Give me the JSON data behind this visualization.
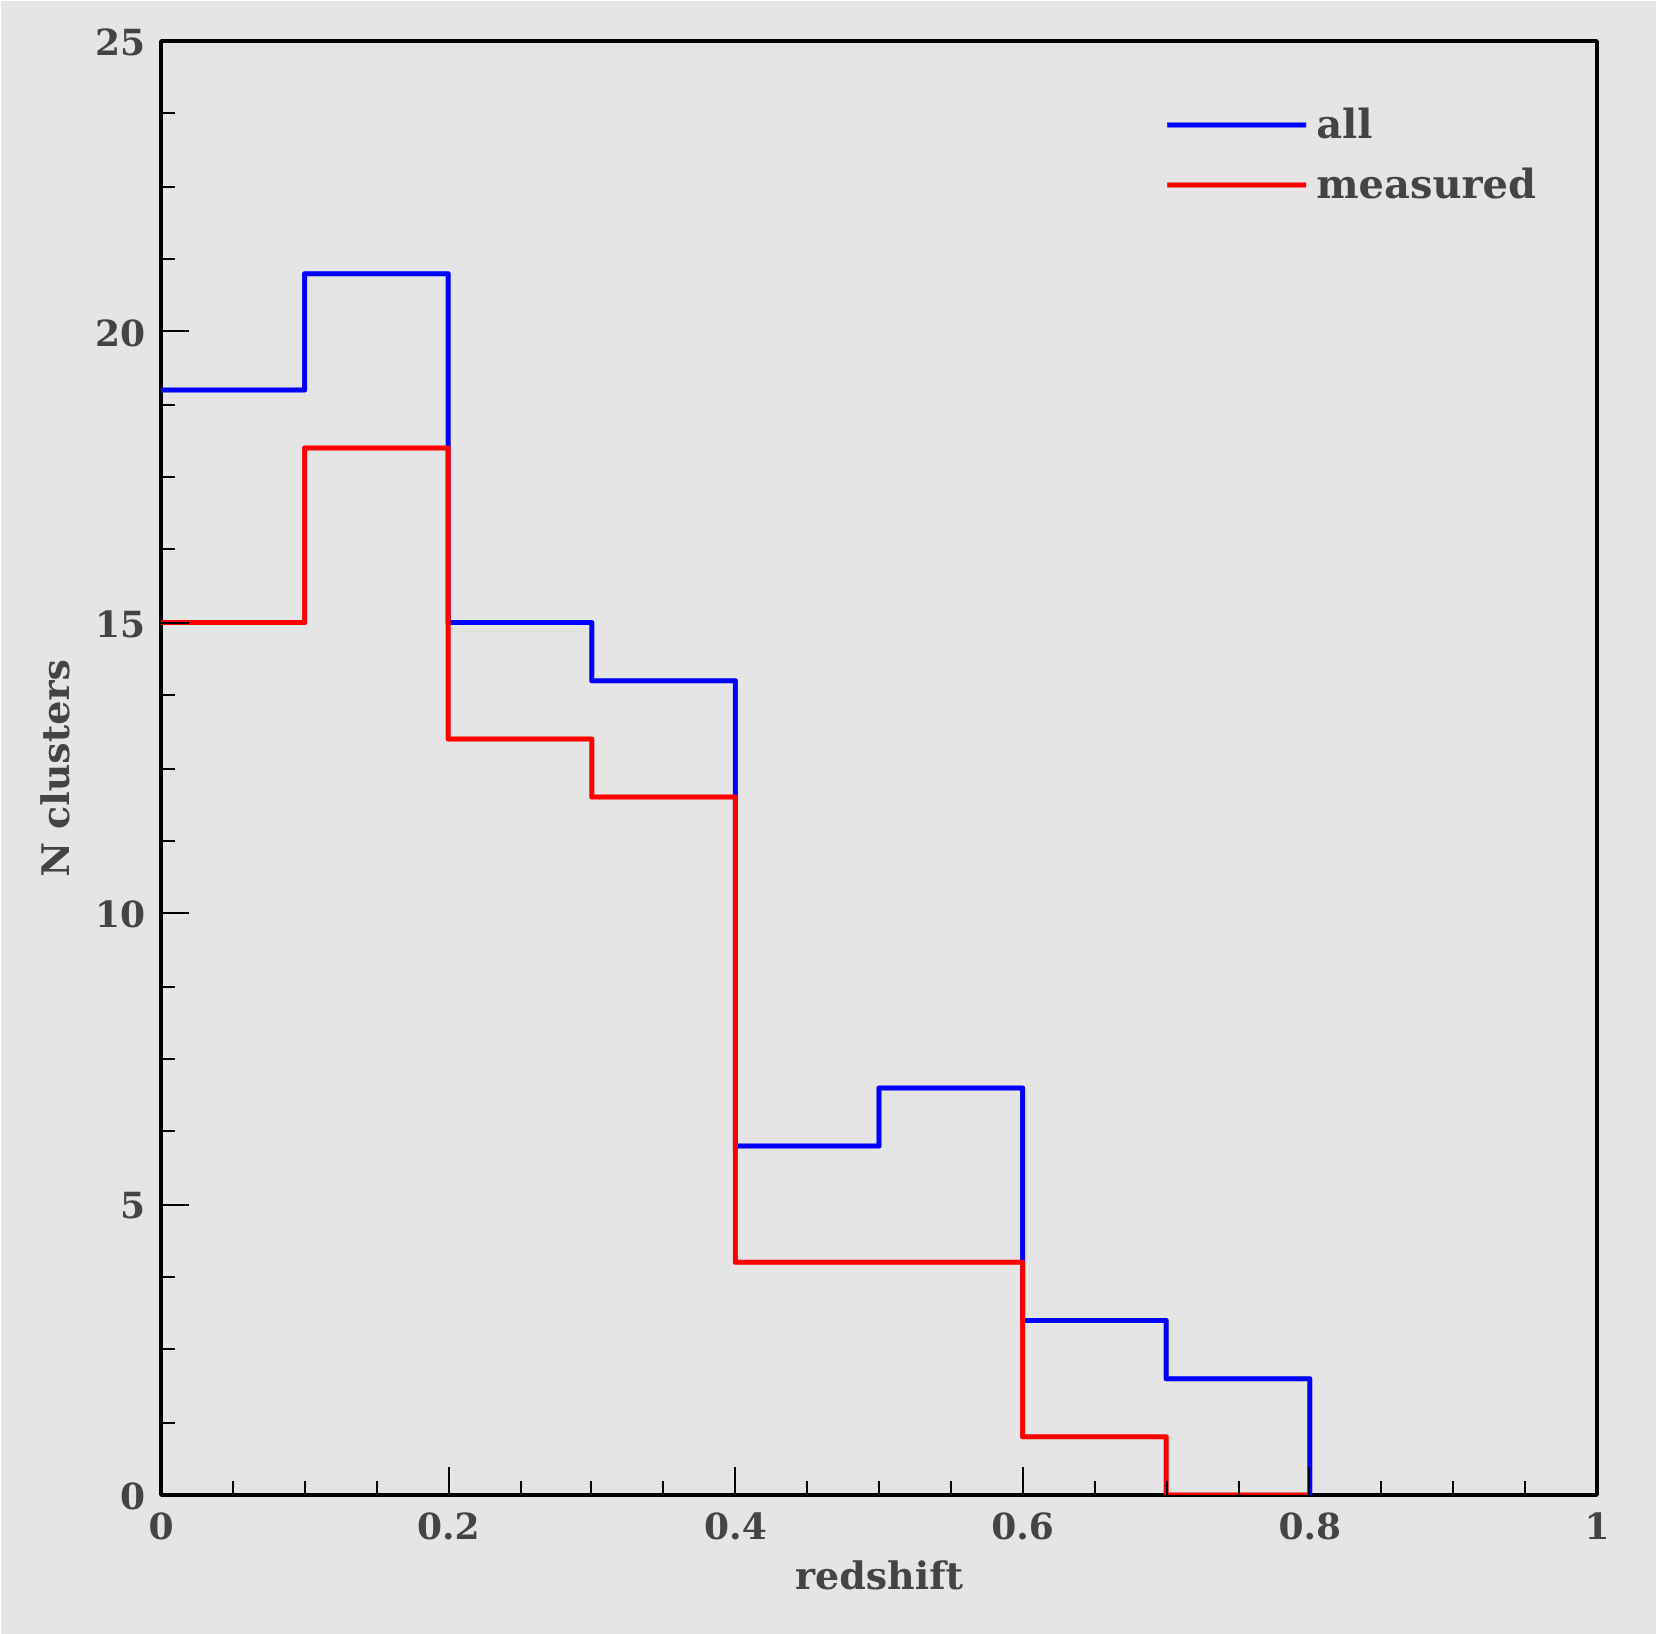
{
  "chart_data": {
    "type": "histogram",
    "xlabel": "redshift",
    "ylabel": "N clusters",
    "bins": [
      0,
      0.1,
      0.2,
      0.3,
      0.4,
      0.5,
      0.6,
      0.7,
      0.8
    ],
    "series": [
      {
        "name": "all",
        "color": "#0000ff",
        "values": [
          19,
          21,
          15,
          14,
          6,
          7,
          3,
          2
        ]
      },
      {
        "name": "measured",
        "color": "#ff0000",
        "values": [
          15,
          18,
          13,
          12,
          4,
          4,
          1,
          0
        ]
      }
    ],
    "xlim": [
      0,
      1
    ],
    "ylim": [
      0,
      25
    ],
    "xticks": [
      0,
      0.2,
      0.4,
      0.6,
      0.8,
      1
    ],
    "yticks": [
      0,
      5,
      10,
      15,
      20,
      25
    ],
    "grid": false,
    "legend": "top right"
  }
}
